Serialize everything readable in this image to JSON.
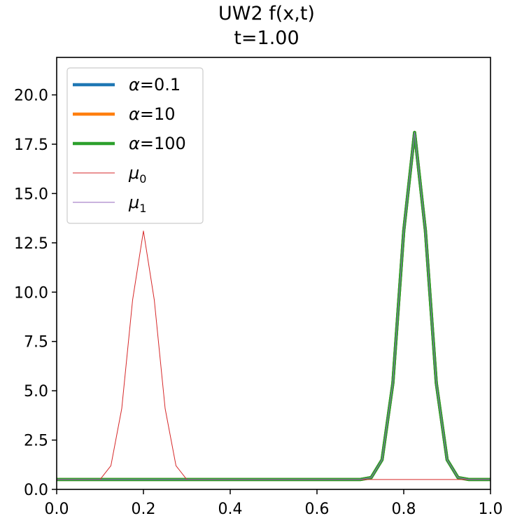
{
  "chart_data": {
    "type": "line",
    "title_line1": "UW2 f(x,t)",
    "title_line2": "t=1.00",
    "xlabel": "",
    "ylabel": "",
    "xlim": [
      0.0,
      1.0
    ],
    "ylim": [
      0.0,
      21.9
    ],
    "xticks": [
      "0.0",
      "0.2",
      "0.4",
      "0.6",
      "0.8",
      "1.0"
    ],
    "xtick_values": [
      0.0,
      0.2,
      0.4,
      0.6,
      0.8,
      1.0
    ],
    "yticks": [
      "0.0",
      "2.5",
      "5.0",
      "7.5",
      "10.0",
      "12.5",
      "15.0",
      "17.5",
      "20.0"
    ],
    "ytick_values": [
      0.0,
      2.5,
      5.0,
      7.5,
      10.0,
      12.5,
      15.0,
      17.5,
      20.0
    ],
    "grid": false,
    "legend_position": "upper-left",
    "x": [
      0.0,
      0.025,
      0.05,
      0.075,
      0.1,
      0.125,
      0.15,
      0.175,
      0.2,
      0.225,
      0.25,
      0.275,
      0.3,
      0.325,
      0.35,
      0.375,
      0.4,
      0.425,
      0.45,
      0.475,
      0.5,
      0.525,
      0.55,
      0.575,
      0.6,
      0.625,
      0.65,
      0.675,
      0.7,
      0.725,
      0.75,
      0.775,
      0.8,
      0.825,
      0.85,
      0.875,
      0.9,
      0.925,
      0.95,
      0.975,
      1.0
    ],
    "series": [
      {
        "name": "α=0.1",
        "legend_main": "α",
        "legend_rest": "=0.1",
        "legend_sub": "",
        "color": "#1f77b4",
        "width": 4.5,
        "values": [
          0.5,
          0.5,
          0.5,
          0.5,
          0.5,
          0.5,
          0.5,
          0.5,
          0.5,
          0.5,
          0.5,
          0.5,
          0.5,
          0.5,
          0.5,
          0.5,
          0.5,
          0.5,
          0.5,
          0.5,
          0.5,
          0.5,
          0.5,
          0.5,
          0.5,
          0.5,
          0.5,
          0.5,
          0.5,
          0.6,
          1.5,
          5.4,
          13.1,
          18.1,
          13.1,
          5.4,
          1.5,
          0.6,
          0.5,
          0.5,
          0.5
        ]
      },
      {
        "name": "α=10",
        "legend_main": "α",
        "legend_rest": "=10",
        "legend_sub": "",
        "color": "#ff7f0e",
        "width": 4.5,
        "values": [
          0.5,
          0.5,
          0.5,
          0.5,
          0.5,
          0.5,
          0.5,
          0.5,
          0.5,
          0.5,
          0.5,
          0.5,
          0.5,
          0.5,
          0.5,
          0.5,
          0.5,
          0.5,
          0.5,
          0.5,
          0.5,
          0.5,
          0.5,
          0.5,
          0.5,
          0.5,
          0.5,
          0.5,
          0.5,
          0.6,
          1.5,
          5.4,
          13.1,
          18.1,
          13.1,
          5.4,
          1.5,
          0.6,
          0.5,
          0.5,
          0.5
        ]
      },
      {
        "name": "α=100",
        "legend_main": "α",
        "legend_rest": "=100",
        "legend_sub": "",
        "color": "#2ca02c",
        "width": 4.5,
        "values": [
          0.5,
          0.5,
          0.5,
          0.5,
          0.5,
          0.5,
          0.5,
          0.5,
          0.5,
          0.5,
          0.5,
          0.5,
          0.5,
          0.5,
          0.5,
          0.5,
          0.5,
          0.5,
          0.5,
          0.5,
          0.5,
          0.5,
          0.5,
          0.5,
          0.5,
          0.5,
          0.5,
          0.5,
          0.5,
          0.6,
          1.5,
          5.4,
          13.1,
          18.1,
          13.1,
          5.4,
          1.5,
          0.6,
          0.5,
          0.5,
          0.5
        ]
      },
      {
        "name": "μ0",
        "legend_main": "μ",
        "legend_rest": "",
        "legend_sub": "0",
        "color": "#d62728",
        "width": 1,
        "values": [
          0.5,
          0.5,
          0.5,
          0.5,
          0.5,
          1.2,
          4.1,
          9.6,
          13.1,
          9.6,
          4.1,
          1.2,
          0.5,
          0.5,
          0.5,
          0.5,
          0.5,
          0.5,
          0.5,
          0.5,
          0.5,
          0.5,
          0.5,
          0.5,
          0.5,
          0.5,
          0.5,
          0.5,
          0.5,
          0.5,
          0.5,
          0.5,
          0.5,
          0.5,
          0.5,
          0.5,
          0.5,
          0.5,
          0.5,
          0.5,
          0.5
        ]
      },
      {
        "name": "μ1",
        "legend_main": "μ",
        "legend_rest": "",
        "legend_sub": "1",
        "color": "#9467bd",
        "width": 1,
        "values": [
          0.5,
          0.5,
          0.5,
          0.5,
          0.5,
          0.5,
          0.5,
          0.5,
          0.5,
          0.5,
          0.5,
          0.5,
          0.5,
          0.5,
          0.5,
          0.5,
          0.5,
          0.5,
          0.5,
          0.5,
          0.5,
          0.5,
          0.5,
          0.5,
          0.5,
          0.5,
          0.5,
          0.5,
          0.5,
          0.6,
          1.5,
          5.4,
          13.1,
          18.1,
          13.1,
          5.4,
          1.5,
          0.6,
          0.5,
          0.5,
          0.5
        ]
      }
    ]
  }
}
